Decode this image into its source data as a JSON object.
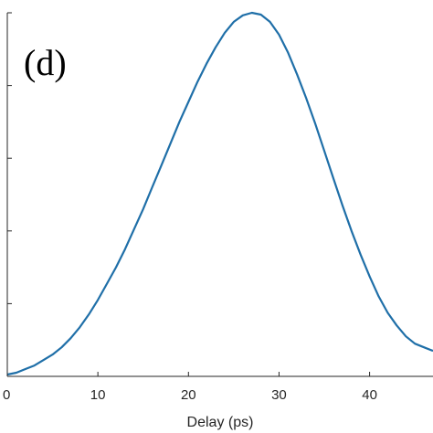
{
  "chart_data": {
    "type": "line",
    "panel_label": "(d)",
    "xlabel": "Delay (ps)",
    "ylabel": "",
    "xlim": [
      0,
      47
    ],
    "ylim": [
      0,
      1
    ],
    "x_ticks": [
      0,
      10,
      20,
      30,
      40
    ],
    "y_ticks": [
      0,
      0.2,
      0.4,
      0.6,
      0.8,
      1
    ],
    "grid": false,
    "colors": {
      "line": "#1f6fa8",
      "axis": "#262626"
    },
    "series": [
      {
        "x": [
          0,
          1,
          2,
          3,
          4,
          5,
          6,
          7,
          8,
          9,
          10,
          11,
          12,
          13,
          14,
          15,
          16,
          17,
          18,
          19,
          20,
          21,
          22,
          23,
          24,
          25,
          26,
          27,
          28,
          29,
          30,
          31,
          32,
          33,
          34,
          35,
          36,
          37,
          38,
          39,
          40,
          41,
          42,
          43,
          44,
          45,
          46,
          47
        ],
        "y": [
          0.005,
          0.01,
          0.02,
          0.03,
          0.045,
          0.06,
          0.08,
          0.105,
          0.135,
          0.17,
          0.21,
          0.255,
          0.3,
          0.35,
          0.405,
          0.46,
          0.52,
          0.58,
          0.64,
          0.7,
          0.755,
          0.81,
          0.86,
          0.905,
          0.945,
          0.975,
          0.993,
          1.0,
          0.995,
          0.975,
          0.94,
          0.89,
          0.83,
          0.765,
          0.695,
          0.62,
          0.545,
          0.47,
          0.4,
          0.335,
          0.275,
          0.22,
          0.175,
          0.14,
          0.11,
          0.09,
          0.08,
          0.07
        ]
      }
    ]
  }
}
